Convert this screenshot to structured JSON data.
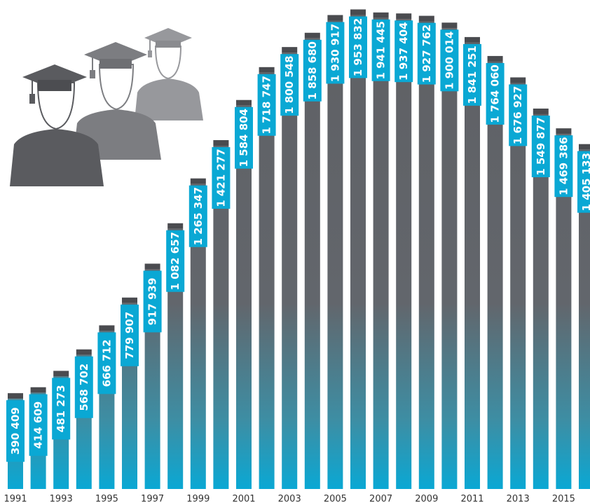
{
  "chart_data": {
    "type": "bar",
    "title": "",
    "xlabel": "",
    "ylabel": "",
    "ylim": [
      0,
      2050000
    ],
    "grid": false,
    "categories": [
      "1991",
      "1992",
      "1993",
      "1994",
      "1995",
      "1996",
      "1997",
      "1998",
      "1999",
      "2000",
      "2001",
      "2002",
      "2003",
      "2004",
      "2005",
      "2006",
      "2007",
      "2008",
      "2009",
      "2010",
      "2011",
      "2012",
      "2013",
      "2014",
      "2015",
      "2016"
    ],
    "tick_labels": [
      "1991",
      "1993",
      "1995",
      "1997",
      "1999",
      "2001",
      "2003",
      "2005",
      "2007",
      "2009",
      "2011",
      "2013",
      "2015"
    ],
    "values": [
      390409,
      414609,
      481273,
      568702,
      666712,
      779907,
      917939,
      1082657,
      1265347,
      1421277,
      1584804,
      1718747,
      1800548,
      1858680,
      1930917,
      1953832,
      1941445,
      1937404,
      1927762,
      1900014,
      1841251,
      1764060,
      1676927,
      1549877,
      1469386,
      1405133
    ],
    "value_labels": [
      "390 409",
      "414 609",
      "481 273",
      "568 702",
      "666 712",
      "779 907",
      "917 939",
      "1 082 657",
      "1 265 347",
      "1 421 277",
      "1 584 804",
      "1 718 747",
      "1 800 548",
      "1 858 680",
      "1 930 917",
      "1 953 832",
      "1 941 445",
      "1 937 404",
      "1 927 762",
      "1 900 014",
      "1 841 251",
      "1 764 060",
      "1 676 927",
      "1 549 877",
      "1 469 386",
      "1 405 133"
    ]
  },
  "colors": {
    "bar_top": "#5f6064",
    "bar_bottom": "#0aa8d4",
    "cap": "#4a4b4f",
    "label_bg": "#0aa8d4",
    "figure_dark": "#5a5b5f",
    "figure_mid": "#7c7d81",
    "figure_light": "#97989c"
  },
  "icons": [
    "graduate-figures-icon"
  ]
}
